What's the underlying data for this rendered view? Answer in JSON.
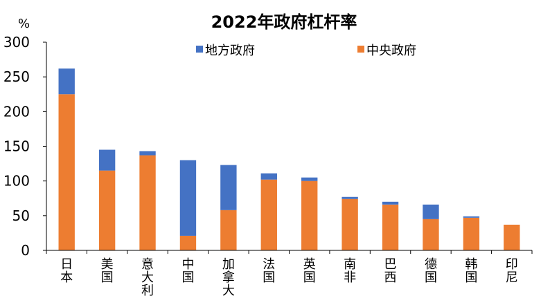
{
  "chart_data": {
    "type": "bar",
    "stacked": true,
    "title": "2022年政府杠杆率",
    "ylabel": "%",
    "ylim": [
      0,
      300
    ],
    "yticks": [
      "0",
      "50",
      "100",
      "150",
      "200",
      "250",
      "300"
    ],
    "categories": [
      "日本",
      "美国",
      "意大利",
      "中国",
      "加拿大",
      "法国",
      "英国",
      "南非",
      "巴西",
      "德国",
      "韩国",
      "印尼"
    ],
    "series": [
      {
        "name": "中央政府",
        "color": "#ED7D31",
        "values": [
          225,
          115,
          137,
          21,
          58,
          102,
          100,
          74,
          66,
          45,
          47,
          37
        ]
      },
      {
        "name": "地方政府",
        "color": "#4472C4",
        "values": [
          37,
          30,
          6,
          109,
          65,
          9,
          5,
          3,
          4,
          21,
          2,
          0
        ]
      }
    ],
    "legend": {
      "position": "top",
      "order": [
        "地方政府",
        "中央政府"
      ]
    },
    "grid": false
  }
}
